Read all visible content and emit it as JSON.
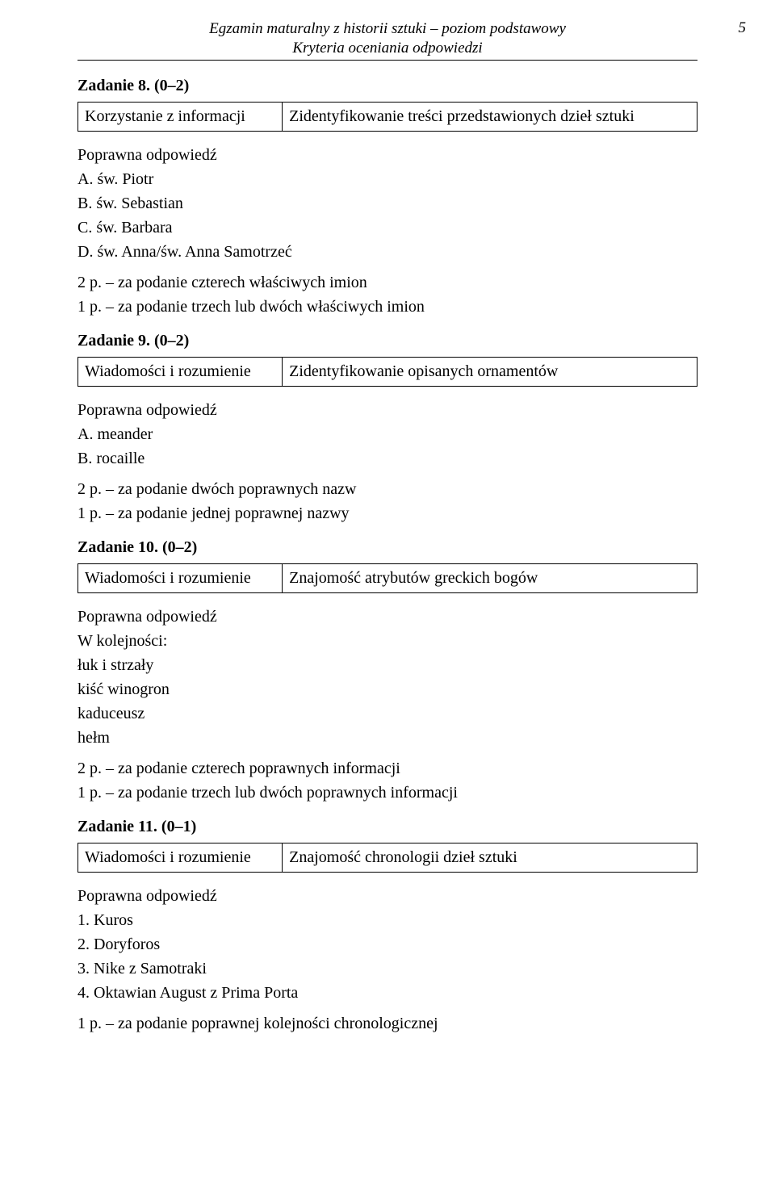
{
  "header": {
    "line1": "Egzamin maturalny z historii sztuki – poziom podstawowy",
    "line2": "Kryteria oceniania odpowiedzi",
    "page_number": "5"
  },
  "tasks": [
    {
      "title": "Zadanie 8. (0–2)",
      "table": {
        "left": "Korzystanie z informacji",
        "right": "Zidentyfikowanie treści przedstawionych dzieł sztuki"
      },
      "answer_heading": "Poprawna odpowiedź",
      "answer_lines": [
        "A. św. Piotr",
        "B. św. Sebastian",
        "C. św. Barbara",
        "D. św. Anna/św. Anna Samotrzeć"
      ],
      "scoring": [
        "2 p. – za podanie czterech właściwych imion",
        "1 p. – za podanie trzech lub dwóch właściwych imion"
      ]
    },
    {
      "title": "Zadanie 9. (0–2)",
      "table": {
        "left": "Wiadomości i rozumienie",
        "right": "Zidentyfikowanie opisanych ornamentów"
      },
      "answer_heading": "Poprawna odpowiedź",
      "answer_lines": [
        "A. meander",
        "B. rocaille"
      ],
      "scoring": [
        "2 p. – za podanie dwóch poprawnych nazw",
        "1 p. – za podanie jednej poprawnej nazwy"
      ]
    },
    {
      "title": "Zadanie 10. (0–2)",
      "table": {
        "left": "Wiadomości i rozumienie",
        "right": "Znajomość atrybutów greckich bogów"
      },
      "answer_heading": "Poprawna odpowiedź",
      "answer_lines": [
        "W kolejności:",
        "łuk i strzały",
        "kiść winogron",
        "kaduceusz",
        "hełm"
      ],
      "scoring": [
        "2 p. – za podanie czterech poprawnych informacji",
        "1 p. – za podanie trzech lub dwóch poprawnych informacji"
      ]
    },
    {
      "title": "Zadanie 11. (0–1)",
      "table": {
        "left": "Wiadomości i rozumienie",
        "right": "Znajomość chronologii dzieł sztuki"
      },
      "answer_heading": "Poprawna odpowiedź",
      "answer_lines": [
        "1. Kuros",
        "2. Doryforos",
        "3. Nike z Samotraki",
        "4. Oktawian August z Prima Porta"
      ],
      "scoring": [
        "1 p. – za podanie poprawnej kolejności chronologicznej"
      ]
    }
  ]
}
